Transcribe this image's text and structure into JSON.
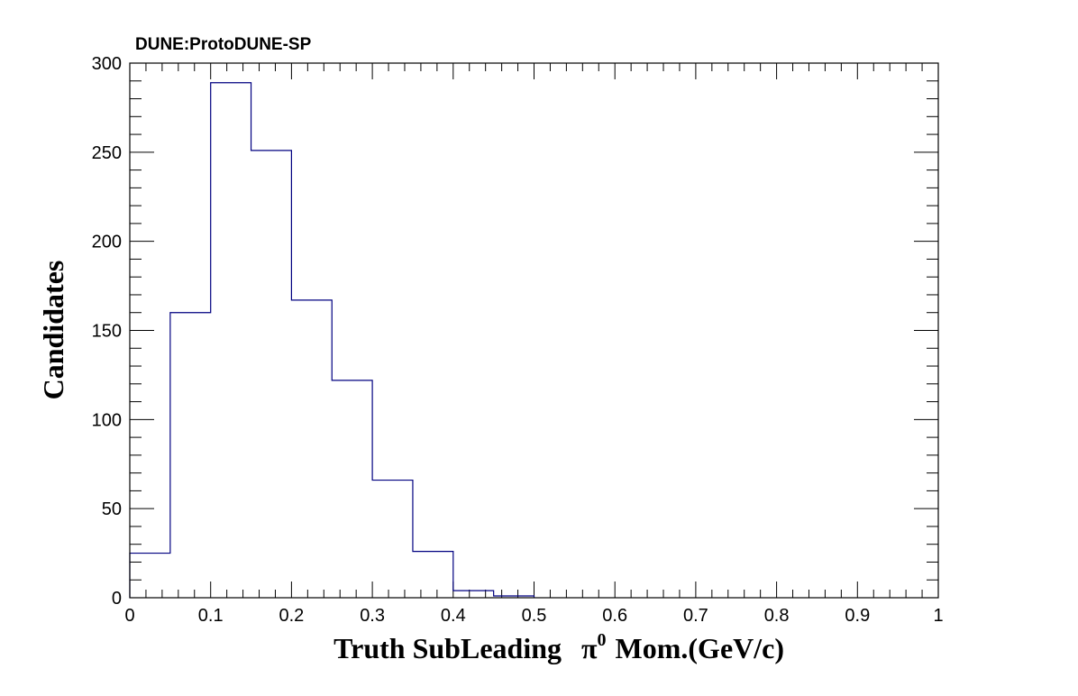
{
  "chart_data": {
    "type": "bar",
    "title": "DUNE:ProtoDUNE-SP",
    "xlabel": {
      "prefix": "Truth SubLeading",
      "symbol": "π",
      "superscript": "0",
      "suffix": "Mom.(GeV/c)"
    },
    "ylabel": "Candidates",
    "xlim": [
      0,
      1
    ],
    "ylim": [
      0,
      300
    ],
    "bin_edges": [
      0,
      0.05,
      0.1,
      0.15,
      0.2,
      0.25,
      0.3,
      0.35,
      0.4,
      0.45,
      0.5
    ],
    "values": [
      25,
      160,
      289,
      251,
      167,
      122,
      66,
      26,
      4,
      1
    ],
    "x_ticks": [
      "0",
      "0.1",
      "0.2",
      "0.3",
      "0.4",
      "0.5",
      "0.6",
      "0.7",
      "0.8",
      "0.9",
      "1"
    ],
    "y_ticks": [
      "0",
      "50",
      "100",
      "150",
      "200",
      "250",
      "300"
    ],
    "grid": false,
    "line_color": "#000080"
  }
}
